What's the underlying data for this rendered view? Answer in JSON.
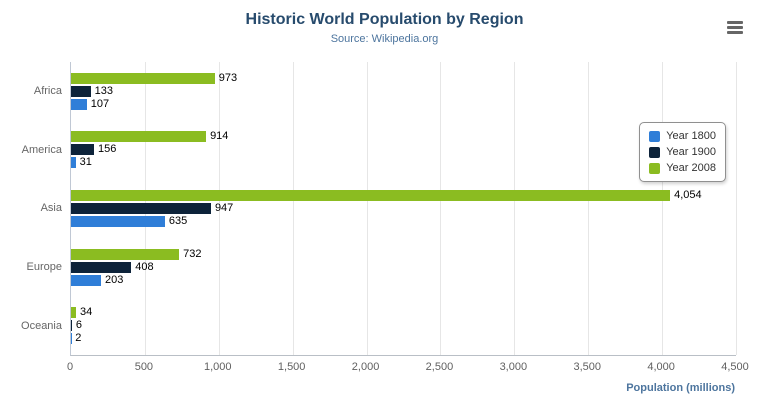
{
  "header": {
    "title": "Historic World Population by Region",
    "subtitle": "Source: Wikipedia.org"
  },
  "export_menu": {
    "icon": "hamburger-menu-icon"
  },
  "chart_data": {
    "type": "bar",
    "title": "Historic World Population by Region",
    "subtitle": "Source: Wikipedia.org",
    "categories": [
      "Africa",
      "America",
      "Asia",
      "Europe",
      "Oceania"
    ],
    "series": [
      {
        "name": "Year 1800",
        "color": "#2f7ed8",
        "values": [
          107,
          31,
          635,
          203,
          2
        ]
      },
      {
        "name": "Year 1900",
        "color": "#0d233a",
        "values": [
          133,
          156,
          947,
          408,
          6
        ]
      },
      {
        "name": "Year 2008",
        "color": "#8bbc21",
        "values": [
          973,
          914,
          4054,
          732,
          34
        ]
      }
    ],
    "xlabel": "Population (millions)",
    "ylabel": "",
    "xlim": [
      0,
      4500
    ],
    "xticks": [
      0,
      500,
      1000,
      1500,
      2000,
      2500,
      3000,
      3500,
      4000,
      4500
    ],
    "tick_labels": [
      "0",
      "500",
      "1,000",
      "1,500",
      "2,000",
      "2,500",
      "3,000",
      "3,500",
      "4,000",
      "4,500"
    ],
    "grid": true,
    "legend_position": "right",
    "data_labels": true
  }
}
